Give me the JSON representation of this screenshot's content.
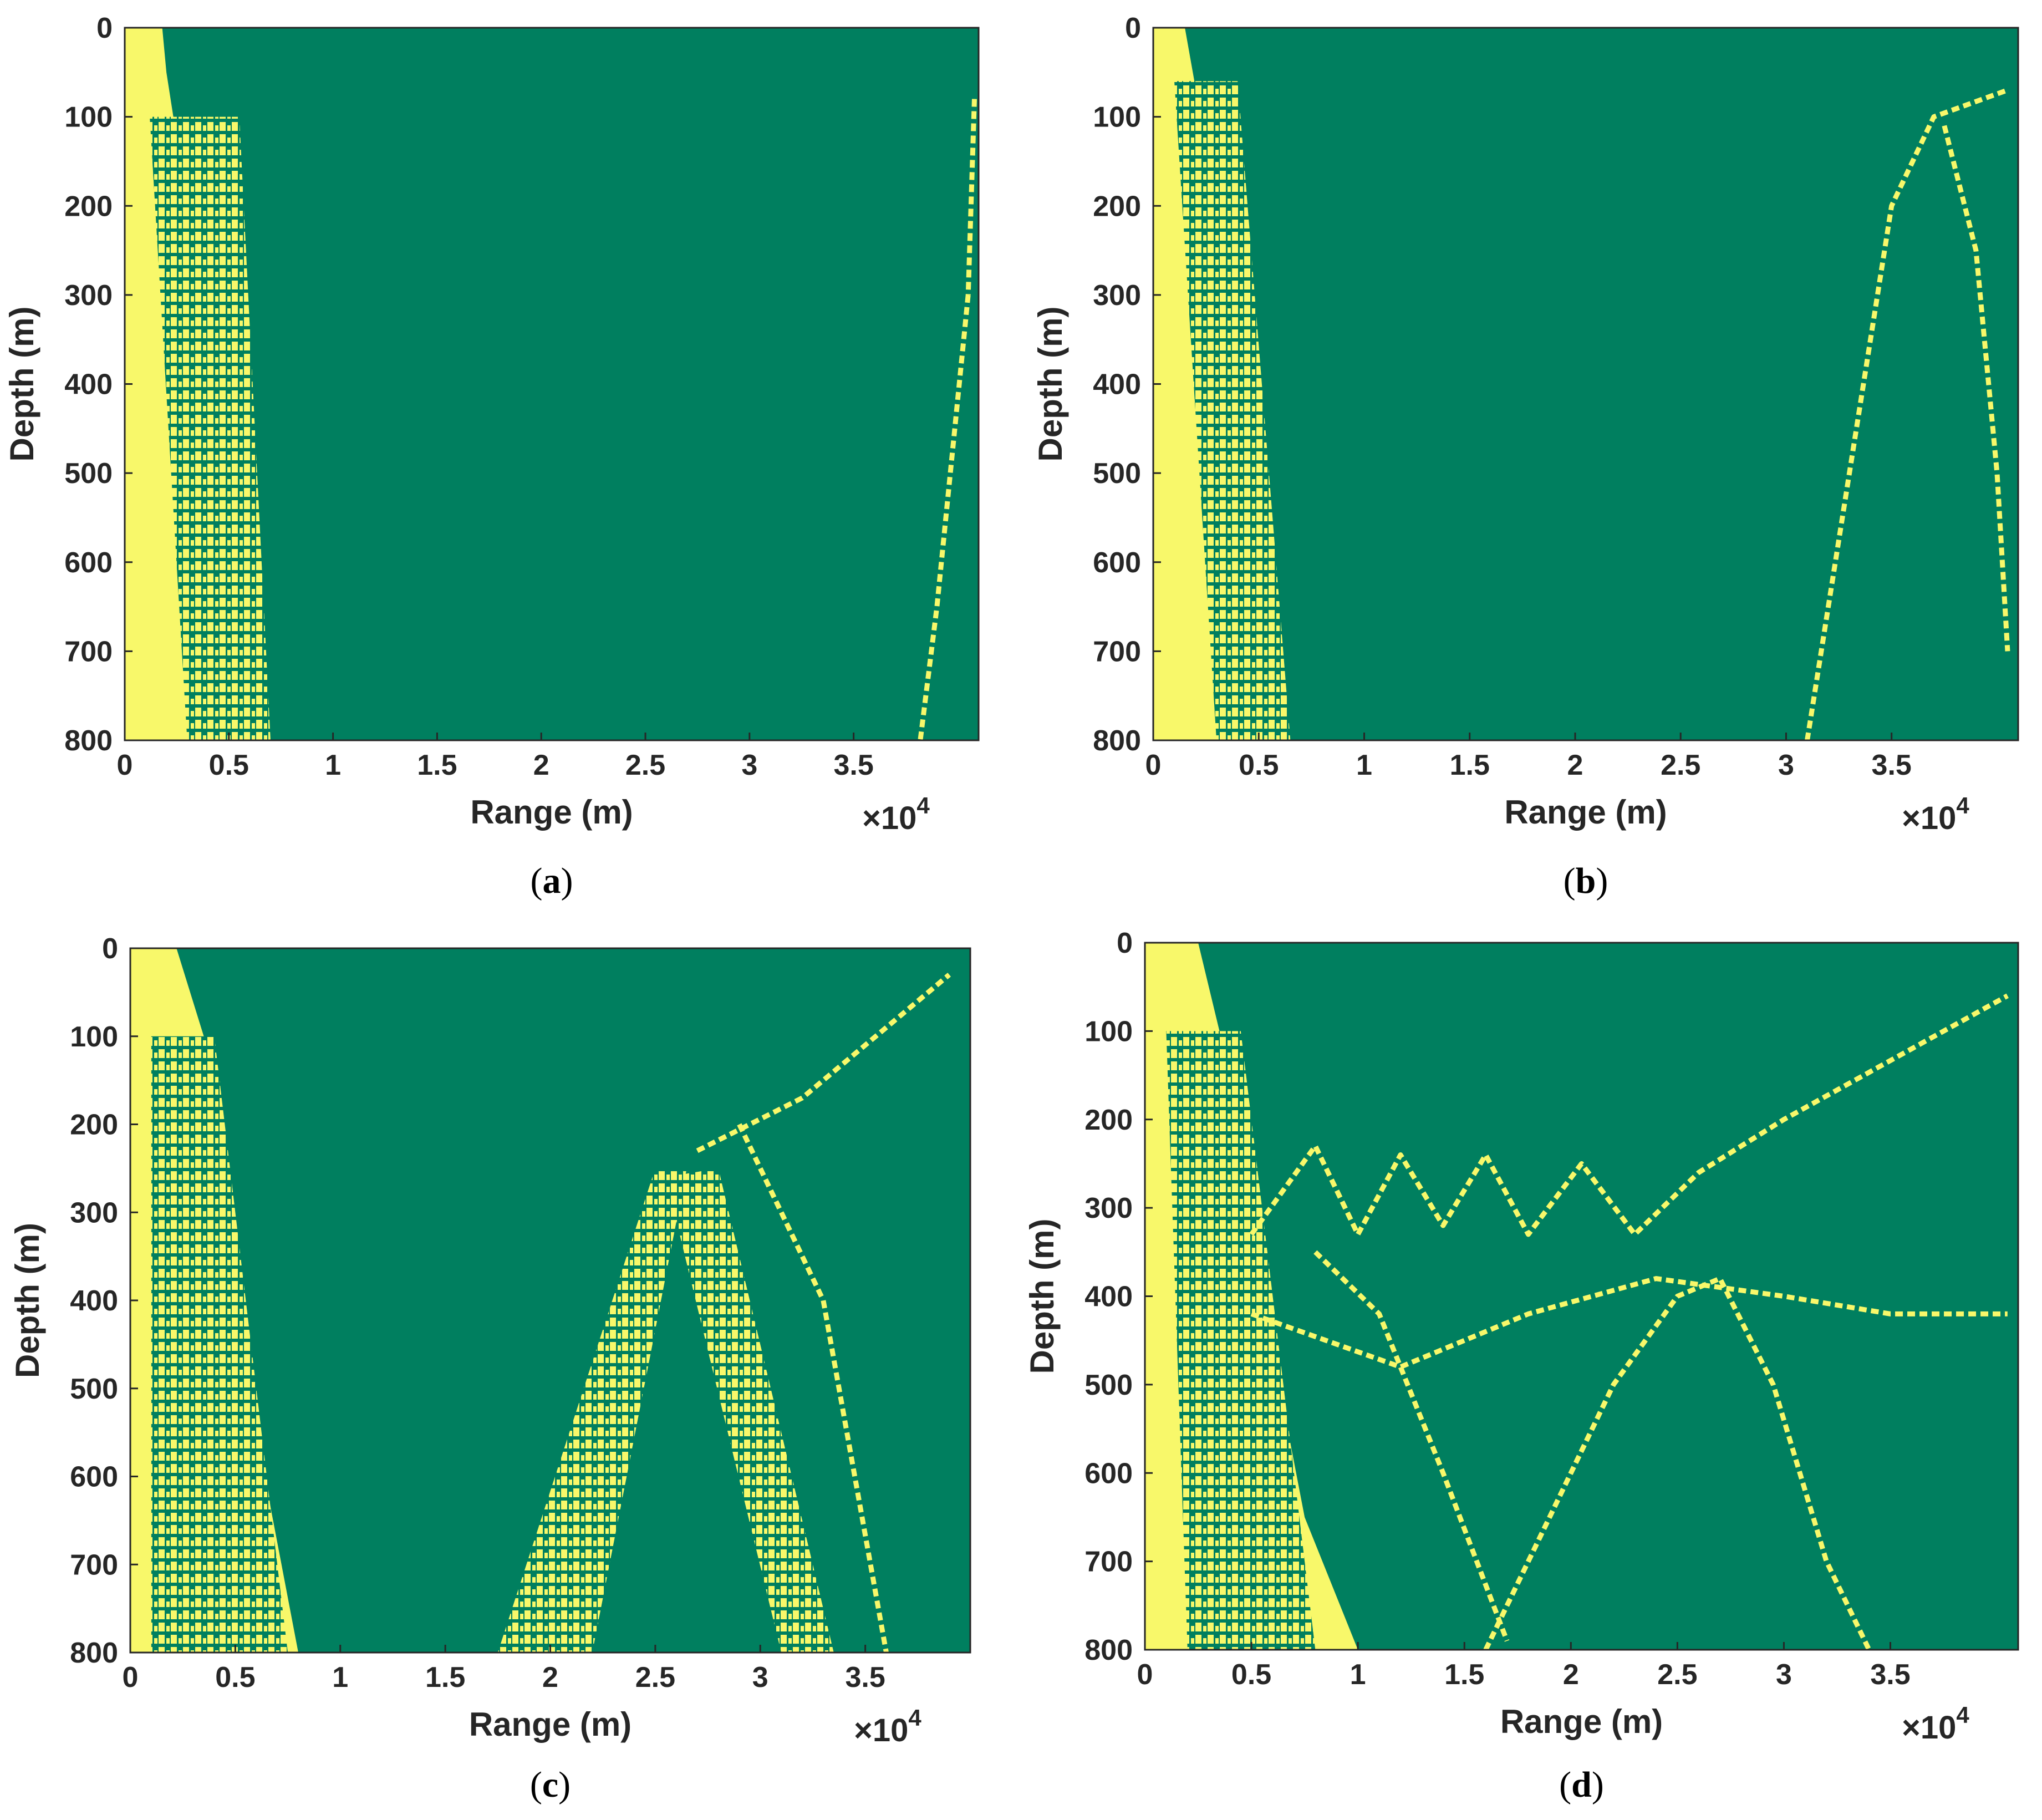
{
  "figure": {
    "colors": {
      "background_class": "#007f5f",
      "foreground_class": "#f8f86a",
      "axis": "#262626"
    },
    "panels": [
      {
        "label": "(a)",
        "label_letter": "a"
      },
      {
        "label": "(b)",
        "label_letter": "b"
      },
      {
        "label": "(c)",
        "label_letter": "c"
      },
      {
        "label": "(d)",
        "label_letter": "d"
      }
    ]
  },
  "chart_data": [
    {
      "type": "heatmap",
      "panel": "a",
      "xlabel": "Range (m)",
      "ylabel": "Depth (m)",
      "x_exponent": "×10",
      "x_exponent_power": "4",
      "xlim": [
        0,
        4.1
      ],
      "ylim": [
        800,
        0
      ],
      "y_reversed": true,
      "x_ticks": [
        0,
        0.5,
        1,
        1.5,
        2,
        2.5,
        3,
        3.5
      ],
      "x_tick_labels": [
        "0",
        "0.5",
        "1",
        "1.5",
        "2",
        "2.5",
        "3",
        "3.5"
      ],
      "y_ticks": [
        0,
        100,
        200,
        300,
        400,
        500,
        600,
        700,
        800
      ],
      "y_tick_labels": [
        "0",
        "100",
        "200",
        "300",
        "400",
        "500",
        "600",
        "700",
        "800"
      ],
      "classes": [
        "green",
        "yellow"
      ],
      "yellow_regions": [
        {
          "kind": "solid",
          "points": [
            [
              0,
              0
            ],
            [
              0.18,
              0
            ],
            [
              0.2,
              50
            ],
            [
              0.3,
              200
            ],
            [
              0.45,
              500
            ],
            [
              0.6,
              800
            ],
            [
              0,
              800
            ]
          ]
        },
        {
          "kind": "striped",
          "points": [
            [
              0.12,
              100
            ],
            [
              0.55,
              100
            ],
            [
              0.7,
              800
            ],
            [
              0.3,
              800
            ]
          ]
        }
      ],
      "yellow_lines": [
        {
          "points": [
            [
              4.05,
              300
            ],
            [
              3.9,
              650
            ],
            [
              3.82,
              800
            ]
          ]
        },
        {
          "points": [
            [
              4.08,
              80
            ],
            [
              4.05,
              300
            ]
          ]
        }
      ]
    },
    {
      "type": "heatmap",
      "panel": "b",
      "xlabel": "Range (m)",
      "ylabel": "Depth (m)",
      "x_exponent": "×10",
      "x_exponent_power": "4",
      "xlim": [
        0,
        4.1
      ],
      "ylim": [
        800,
        0
      ],
      "y_reversed": true,
      "x_ticks": [
        0,
        0.5,
        1,
        1.5,
        2,
        2.5,
        3,
        3.5
      ],
      "x_tick_labels": [
        "0",
        "0.5",
        "1",
        "1.5",
        "2",
        "2.5",
        "3",
        "3.5"
      ],
      "y_ticks": [
        0,
        100,
        200,
        300,
        400,
        500,
        600,
        700,
        800
      ],
      "y_tick_labels": [
        "0",
        "100",
        "200",
        "300",
        "400",
        "500",
        "600",
        "700",
        "800"
      ],
      "classes": [
        "green",
        "yellow"
      ],
      "yellow_regions": [
        {
          "kind": "solid",
          "points": [
            [
              0,
              0
            ],
            [
              0.15,
              0
            ],
            [
              0.3,
              200
            ],
            [
              0.45,
              500
            ],
            [
              0.55,
              800
            ],
            [
              0,
              800
            ]
          ]
        },
        {
          "kind": "striped",
          "points": [
            [
              0.1,
              60
            ],
            [
              0.4,
              60
            ],
            [
              0.65,
              800
            ],
            [
              0.3,
              800
            ]
          ]
        }
      ],
      "yellow_lines": [
        {
          "points": [
            [
              3.1,
              800
            ],
            [
              3.3,
              500
            ],
            [
              3.5,
              200
            ],
            [
              3.7,
              100
            ],
            [
              4.05,
              70
            ]
          ]
        },
        {
          "points": [
            [
              3.75,
              110
            ],
            [
              3.9,
              250
            ],
            [
              4.0,
              500
            ],
            [
              4.05,
              700
            ]
          ]
        }
      ]
    },
    {
      "type": "heatmap",
      "panel": "c",
      "xlabel": "Range (m)",
      "ylabel": "Depth (m)",
      "x_exponent": "×10",
      "x_exponent_power": "4",
      "xlim": [
        0,
        4.0
      ],
      "ylim": [
        800,
        0
      ],
      "y_reversed": true,
      "x_ticks": [
        0,
        0.5,
        1,
        1.5,
        2,
        2.5,
        3,
        3.5
      ],
      "x_tick_labels": [
        "0",
        "0.5",
        "1",
        "1.5",
        "2",
        "2.5",
        "3",
        "3.5"
      ],
      "y_ticks": [
        0,
        100,
        200,
        300,
        400,
        500,
        600,
        700,
        800
      ],
      "y_tick_labels": [
        "0",
        "100",
        "200",
        "300",
        "400",
        "500",
        "600",
        "700",
        "800"
      ],
      "classes": [
        "green",
        "yellow"
      ],
      "yellow_regions": [
        {
          "kind": "solid",
          "points": [
            [
              0,
              0
            ],
            [
              0.22,
              0
            ],
            [
              0.35,
              100
            ],
            [
              0.45,
              300
            ],
            [
              0.6,
              550
            ],
            [
              0.8,
              800
            ],
            [
              0,
              800
            ]
          ]
        },
        {
          "kind": "striped",
          "points": [
            [
              0.1,
              100
            ],
            [
              0.4,
              100
            ],
            [
              0.75,
              800
            ],
            [
              0.1,
              800
            ]
          ]
        },
        {
          "kind": "striped",
          "points": [
            [
              1.75,
              800
            ],
            [
              2.5,
              250
            ],
            [
              2.65,
              250
            ],
            [
              2.2,
              800
            ]
          ]
        },
        {
          "kind": "striped",
          "points": [
            [
              2.55,
              260
            ],
            [
              2.8,
              250
            ],
            [
              3.35,
              800
            ],
            [
              3.1,
              800
            ]
          ]
        }
      ],
      "yellow_lines": [
        {
          "points": [
            [
              2.7,
              230
            ],
            [
              3.2,
              170
            ],
            [
              3.9,
              30
            ]
          ]
        },
        {
          "points": [
            [
              2.9,
              200
            ],
            [
              3.3,
              400
            ],
            [
              3.6,
              800
            ]
          ]
        }
      ]
    },
    {
      "type": "heatmap",
      "panel": "d",
      "xlabel": "Range (m)",
      "ylabel": "Depth (m)",
      "x_exponent": "×10",
      "x_exponent_power": "4",
      "xlim": [
        0,
        4.1
      ],
      "ylim": [
        800,
        0
      ],
      "y_reversed": true,
      "x_ticks": [
        0,
        0.5,
        1,
        1.5,
        2,
        2.5,
        3,
        3.5
      ],
      "x_tick_labels": [
        "0",
        "0.5",
        "1",
        "1.5",
        "2",
        "2.5",
        "3",
        "3.5"
      ],
      "y_ticks": [
        0,
        100,
        200,
        300,
        400,
        500,
        600,
        700,
        800
      ],
      "y_tick_labels": [
        "0",
        "100",
        "200",
        "300",
        "400",
        "500",
        "600",
        "700",
        "800"
      ],
      "classes": [
        "green",
        "yellow"
      ],
      "yellow_regions": [
        {
          "kind": "solid",
          "points": [
            [
              0,
              0
            ],
            [
              0.25,
              0
            ],
            [
              0.4,
              150
            ],
            [
              0.55,
              400
            ],
            [
              0.75,
              650
            ],
            [
              1.0,
              800
            ],
            [
              0,
              800
            ]
          ]
        },
        {
          "kind": "striped",
          "points": [
            [
              0.1,
              100
            ],
            [
              0.45,
              100
            ],
            [
              0.8,
              800
            ],
            [
              0.2,
              800
            ]
          ]
        }
      ],
      "yellow_lines": [
        {
          "points": [
            [
              0.5,
              330
            ],
            [
              0.8,
              230
            ],
            [
              1.0,
              330
            ],
            [
              1.2,
              240
            ],
            [
              1.4,
              320
            ],
            [
              1.6,
              240
            ],
            [
              1.8,
              330
            ],
            [
              2.05,
              250
            ],
            [
              2.3,
              330
            ],
            [
              2.6,
              260
            ],
            [
              3.0,
              200
            ],
            [
              3.6,
              120
            ],
            [
              4.05,
              60
            ]
          ]
        },
        {
          "points": [
            [
              0.5,
              420
            ],
            [
              1.2,
              480
            ],
            [
              1.8,
              420
            ],
            [
              2.4,
              380
            ],
            [
              3.0,
              400
            ],
            [
              3.5,
              420
            ],
            [
              4.05,
              420
            ]
          ]
        },
        {
          "points": [
            [
              1.6,
              800
            ],
            [
              1.9,
              650
            ],
            [
              2.2,
              500
            ],
            [
              2.5,
              400
            ],
            [
              2.7,
              380
            ],
            [
              2.95,
              500
            ],
            [
              3.2,
              700
            ],
            [
              3.4,
              800
            ]
          ]
        },
        {
          "points": [
            [
              0.8,
              350
            ],
            [
              1.1,
              420
            ],
            [
              1.4,
              600
            ],
            [
              1.7,
              790
            ]
          ]
        }
      ]
    }
  ]
}
